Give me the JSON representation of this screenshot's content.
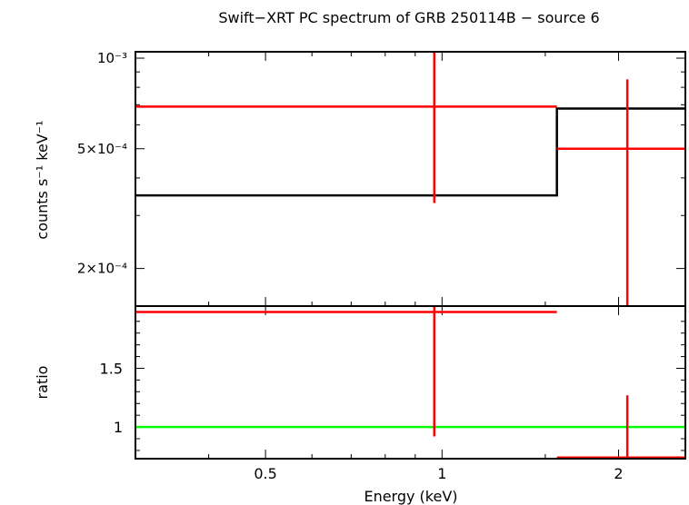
{
  "chart_data": [
    {
      "type": "line",
      "title": "Swift−XRT PC spectrum of GRB 250114B − source 6",
      "ylabel": "counts s⁻¹ keV⁻¹",
      "xlabel": "",
      "xscale": "log",
      "yscale": "log",
      "xlim": [
        0.3,
        2.6
      ],
      "ylim": [
        0.00015,
        0.00105
      ],
      "yticks": [
        {
          "value": 0.001,
          "label": "10⁻³"
        },
        {
          "value": 0.0005,
          "label": "5×10⁻⁴"
        },
        {
          "value": 0.0002,
          "label": "2×10⁻⁴"
        }
      ],
      "series": [
        {
          "role": "data",
          "color": "#ff0000",
          "points": [
            {
              "x": 0.97,
              "xlo": 0.3,
              "xhi": 1.57,
              "y": 0.00069,
              "ylo": 0.00033,
              "yhi": 0.00105
            },
            {
              "x": 2.07,
              "xlo": 1.57,
              "xhi": 2.6,
              "y": 0.0005,
              "ylo": 0.00015,
              "yhi": 0.00085
            }
          ]
        },
        {
          "role": "model",
          "color": "#000000",
          "steps": [
            {
              "xlo": 0.3,
              "xhi": 1.57,
              "y": 0.00035
            },
            {
              "xlo": 1.57,
              "xhi": 2.6,
              "y": 0.00068
            }
          ]
        }
      ]
    },
    {
      "type": "line",
      "title": "",
      "ylabel": "ratio",
      "xlabel": "Energy (keV)",
      "xscale": "log",
      "xlim": [
        0.3,
        2.6
      ],
      "ylim": [
        0.73,
        2.03
      ],
      "xticks": [
        {
          "value": 0.5,
          "label": "0.5"
        },
        {
          "value": 1,
          "label": "1"
        },
        {
          "value": 2,
          "label": "2"
        }
      ],
      "yticks": [
        {
          "value": 1.5,
          "label": "1.5"
        },
        {
          "value": 1,
          "label": "1"
        }
      ],
      "reference_line": {
        "y": 1,
        "color": "#00ff00"
      },
      "series": [
        {
          "role": "data",
          "color": "#ff0000",
          "points": [
            {
              "x": 0.97,
              "xlo": 0.3,
              "xhi": 1.57,
              "y": 1.98,
              "ylo": 0.92,
              "yhi": 2.03
            },
            {
              "x": 2.07,
              "xlo": 1.57,
              "xhi": 2.6,
              "y": 0.74,
              "ylo": 0.73,
              "yhi": 1.27
            }
          ]
        }
      ]
    }
  ]
}
